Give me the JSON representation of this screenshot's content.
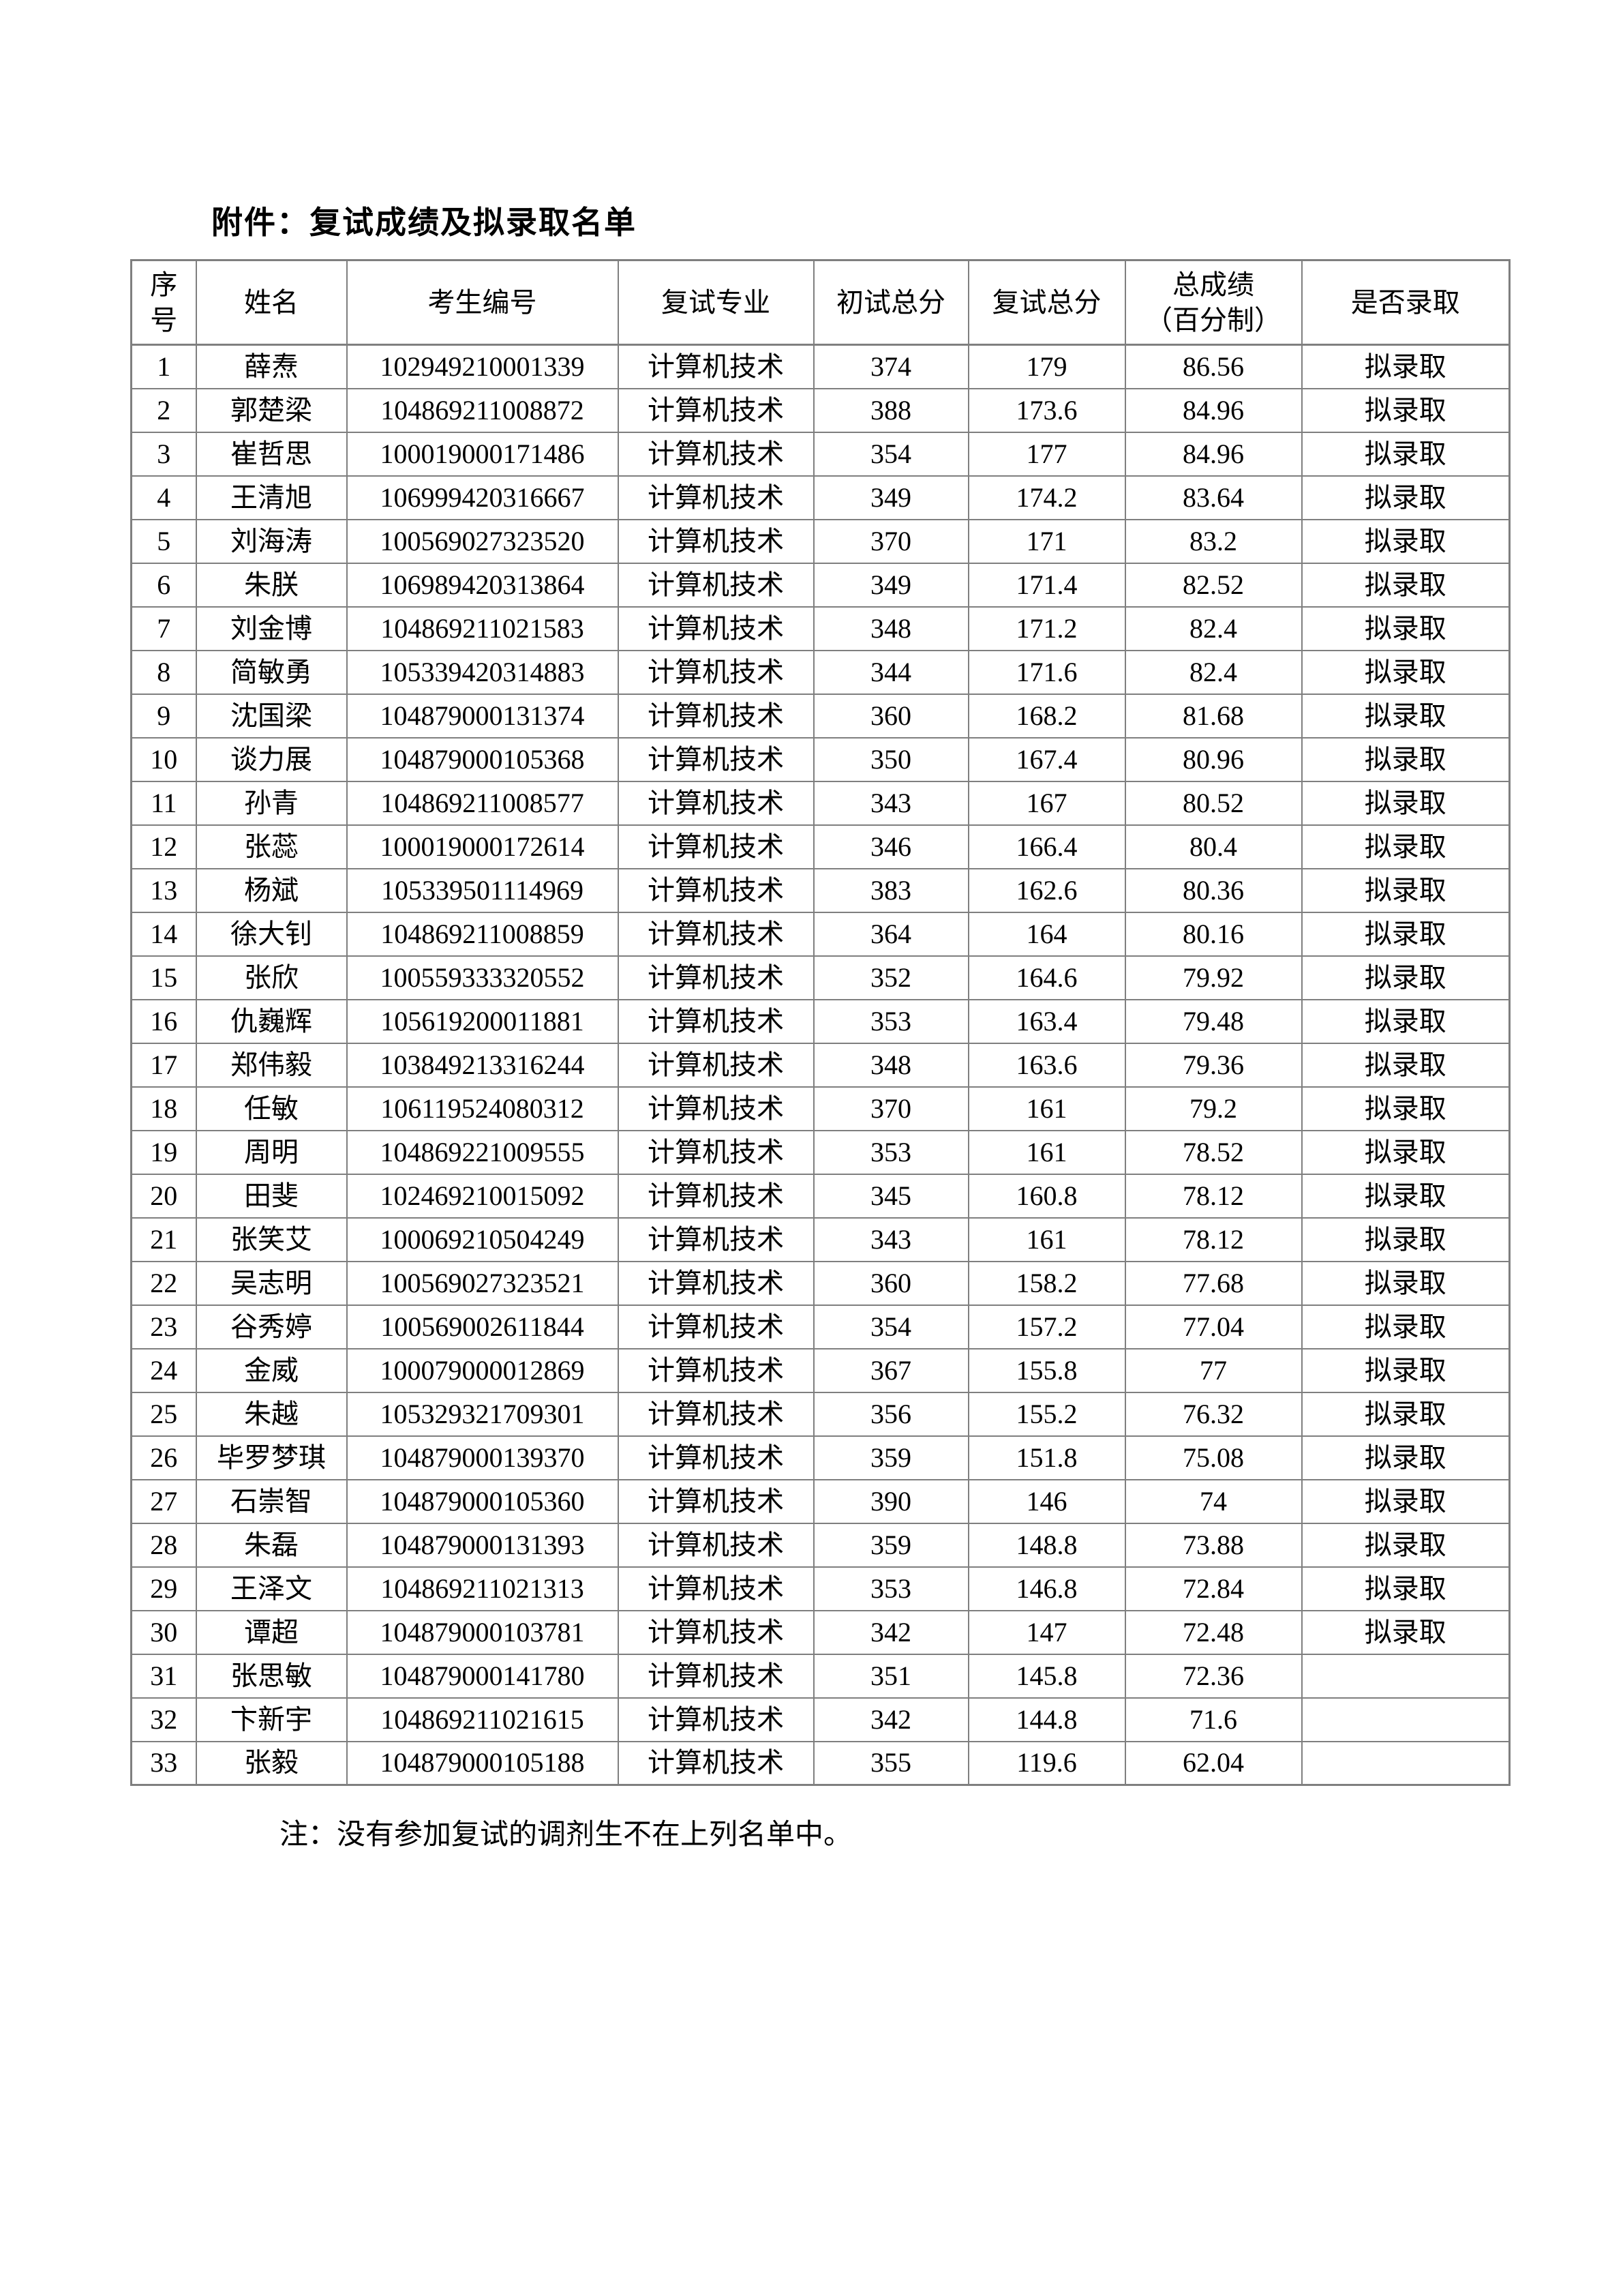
{
  "title": "附件：复试成绩及拟录取名单",
  "note": "注：没有参加复试的调剂生不在上列名单中。",
  "table": {
    "headers": [
      "序\n号",
      "姓名",
      "考生编号",
      "复试专业",
      "初试总分",
      "复试总分",
      "总成绩\n（百分制）",
      "是否录取"
    ],
    "rows": [
      [
        "1",
        "薛焘",
        "102949210001339",
        "计算机技术",
        "374",
        "179",
        "86.56",
        "拟录取"
      ],
      [
        "2",
        "郭楚梁",
        "104869211008872",
        "计算机技术",
        "388",
        "173.6",
        "84.96",
        "拟录取"
      ],
      [
        "3",
        "崔哲思",
        "100019000171486",
        "计算机技术",
        "354",
        "177",
        "84.96",
        "拟录取"
      ],
      [
        "4",
        "王清旭",
        "106999420316667",
        "计算机技术",
        "349",
        "174.2",
        "83.64",
        "拟录取"
      ],
      [
        "5",
        "刘海涛",
        "100569027323520",
        "计算机技术",
        "370",
        "171",
        "83.2",
        "拟录取"
      ],
      [
        "6",
        "朱朕",
        "106989420313864",
        "计算机技术",
        "349",
        "171.4",
        "82.52",
        "拟录取"
      ],
      [
        "7",
        "刘金博",
        "104869211021583",
        "计算机技术",
        "348",
        "171.2",
        "82.4",
        "拟录取"
      ],
      [
        "8",
        "简敏勇",
        "105339420314883",
        "计算机技术",
        "344",
        "171.6",
        "82.4",
        "拟录取"
      ],
      [
        "9",
        "沈国梁",
        "104879000131374",
        "计算机技术",
        "360",
        "168.2",
        "81.68",
        "拟录取"
      ],
      [
        "10",
        "谈力展",
        "104879000105368",
        "计算机技术",
        "350",
        "167.4",
        "80.96",
        "拟录取"
      ],
      [
        "11",
        "孙青",
        "104869211008577",
        "计算机技术",
        "343",
        "167",
        "80.52",
        "拟录取"
      ],
      [
        "12",
        "张蕊",
        "100019000172614",
        "计算机技术",
        "346",
        "166.4",
        "80.4",
        "拟录取"
      ],
      [
        "13",
        "杨斌",
        "105339501114969",
        "计算机技术",
        "383",
        "162.6",
        "80.36",
        "拟录取"
      ],
      [
        "14",
        "徐大钊",
        "104869211008859",
        "计算机技术",
        "364",
        "164",
        "80.16",
        "拟录取"
      ],
      [
        "15",
        "张欣",
        "100559333320552",
        "计算机技术",
        "352",
        "164.6",
        "79.92",
        "拟录取"
      ],
      [
        "16",
        "仇巍辉",
        "105619200011881",
        "计算机技术",
        "353",
        "163.4",
        "79.48",
        "拟录取"
      ],
      [
        "17",
        "郑伟毅",
        "103849213316244",
        "计算机技术",
        "348",
        "163.6",
        "79.36",
        "拟录取"
      ],
      [
        "18",
        "任敏",
        "106119524080312",
        "计算机技术",
        "370",
        "161",
        "79.2",
        "拟录取"
      ],
      [
        "19",
        "周明",
        "104869221009555",
        "计算机技术",
        "353",
        "161",
        "78.52",
        "拟录取"
      ],
      [
        "20",
        "田斐",
        "102469210015092",
        "计算机技术",
        "345",
        "160.8",
        "78.12",
        "拟录取"
      ],
      [
        "21",
        "张笑艾",
        "100069210504249",
        "计算机技术",
        "343",
        "161",
        "78.12",
        "拟录取"
      ],
      [
        "22",
        "吴志明",
        "100569027323521",
        "计算机技术",
        "360",
        "158.2",
        "77.68",
        "拟录取"
      ],
      [
        "23",
        "谷秀婷",
        "100569002611844",
        "计算机技术",
        "354",
        "157.2",
        "77.04",
        "拟录取"
      ],
      [
        "24",
        "金威",
        "100079000012869",
        "计算机技术",
        "367",
        "155.8",
        "77",
        "拟录取"
      ],
      [
        "25",
        "朱越",
        "105329321709301",
        "计算机技术",
        "356",
        "155.2",
        "76.32",
        "拟录取"
      ],
      [
        "26",
        "毕罗梦琪",
        "104879000139370",
        "计算机技术",
        "359",
        "151.8",
        "75.08",
        "拟录取"
      ],
      [
        "27",
        "石崇智",
        "104879000105360",
        "计算机技术",
        "390",
        "146",
        "74",
        "拟录取"
      ],
      [
        "28",
        "朱磊",
        "104879000131393",
        "计算机技术",
        "359",
        "148.8",
        "73.88",
        "拟录取"
      ],
      [
        "29",
        "王泽文",
        "104869211021313",
        "计算机技术",
        "353",
        "146.8",
        "72.84",
        "拟录取"
      ],
      [
        "30",
        "谭超",
        "104879000103781",
        "计算机技术",
        "342",
        "147",
        "72.48",
        "拟录取"
      ],
      [
        "31",
        "张思敏",
        "104879000141780",
        "计算机技术",
        "351",
        "145.8",
        "72.36",
        ""
      ],
      [
        "32",
        "卞新宇",
        "104869211021615",
        "计算机技术",
        "342",
        "144.8",
        "71.6",
        ""
      ],
      [
        "33",
        "张毅",
        "104879000105188",
        "计算机技术",
        "355",
        "119.6",
        "62.04",
        ""
      ]
    ]
  }
}
